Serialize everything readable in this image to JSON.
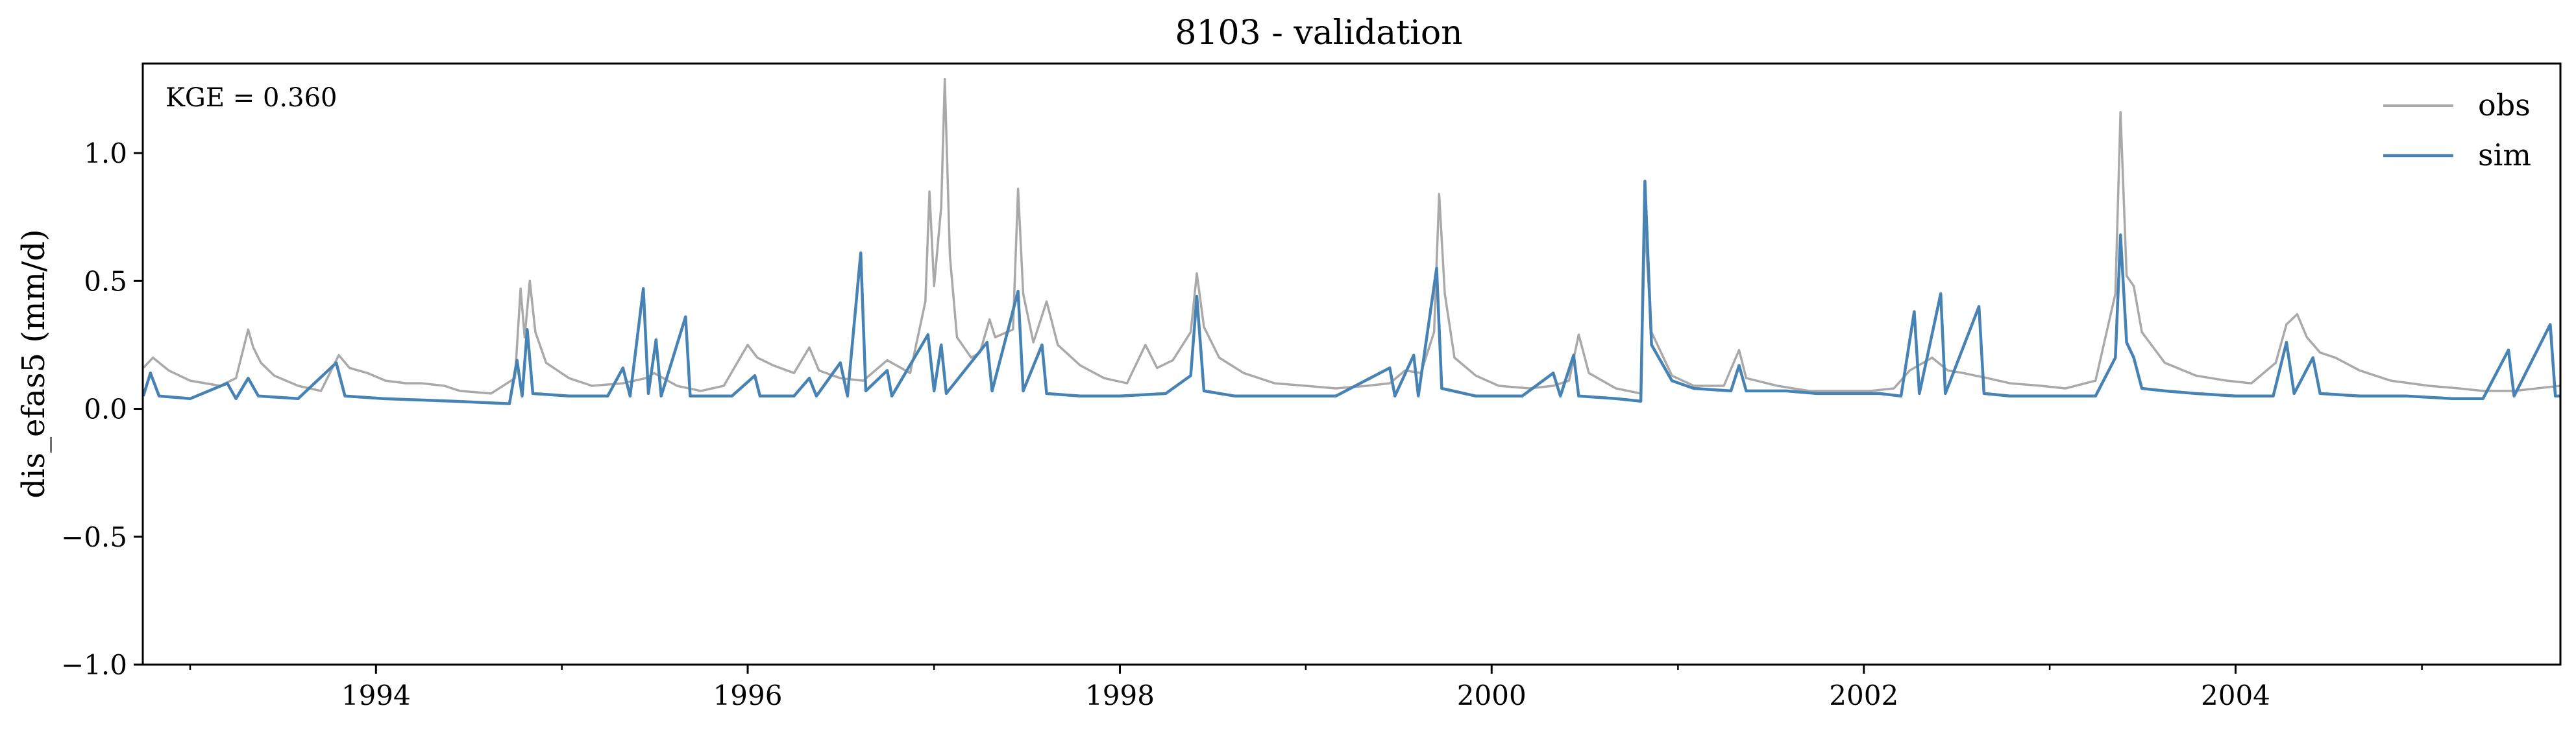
{
  "chart_data": {
    "type": "line",
    "title": "8103 - validation",
    "xlabel": "",
    "ylabel": "dis_efas5 (mm/d)",
    "annotation": "KGE = 0.360",
    "xlim": [
      "1992-09-30",
      "2005-09-30"
    ],
    "ylim": [
      -1.0,
      1.35
    ],
    "x_ticks": [
      "1994-01-01",
      "1996-01-01",
      "1998-01-01",
      "2000-01-01",
      "2002-01-01",
      "2004-01-01"
    ],
    "x_tick_labels": [
      "1994",
      "1996",
      "1998",
      "2000",
      "2002",
      "2004"
    ],
    "y_ticks": [
      -1.0,
      -0.5,
      0.0,
      0.5,
      1.0
    ],
    "y_tick_labels": [
      "−1.0",
      "−0.5",
      "0.0",
      "0.5",
      "1.0"
    ],
    "grid": false,
    "legend": "top-right",
    "series": [
      {
        "name": "obs",
        "color": "#a9a9a9",
        "points": [
          [
            "1992-10-01",
            0.16
          ],
          [
            "1992-10-20",
            0.2
          ],
          [
            "1992-11-20",
            0.15
          ],
          [
            "1993-01-01",
            0.11
          ],
          [
            "1993-03-01",
            0.09
          ],
          [
            "1993-04-01",
            0.12
          ],
          [
            "1993-04-25",
            0.31
          ],
          [
            "1993-05-05",
            0.24
          ],
          [
            "1993-05-20",
            0.18
          ],
          [
            "1993-06-15",
            0.13
          ],
          [
            "1993-08-01",
            0.09
          ],
          [
            "1993-09-15",
            0.07
          ],
          [
            "1993-10-20",
            0.21
          ],
          [
            "1993-11-10",
            0.16
          ],
          [
            "1993-12-15",
            0.14
          ],
          [
            "1994-01-20",
            0.11
          ],
          [
            "1994-03-01",
            0.1
          ],
          [
            "1994-04-01",
            0.1
          ],
          [
            "1994-05-15",
            0.09
          ],
          [
            "1994-06-15",
            0.07
          ],
          [
            "1994-08-15",
            0.06
          ],
          [
            "1994-10-01",
            0.12
          ],
          [
            "1994-10-12",
            0.47
          ],
          [
            "1994-10-20",
            0.28
          ],
          [
            "1994-10-30",
            0.5
          ],
          [
            "1994-11-10",
            0.3
          ],
          [
            "1994-12-01",
            0.18
          ],
          [
            "1995-01-15",
            0.12
          ],
          [
            "1995-03-01",
            0.09
          ],
          [
            "1995-05-01",
            0.1
          ],
          [
            "1995-06-15",
            0.12
          ],
          [
            "1995-07-01",
            0.14
          ],
          [
            "1995-08-15",
            0.09
          ],
          [
            "1995-10-01",
            0.07
          ],
          [
            "1995-11-15",
            0.09
          ],
          [
            "1996-01-01",
            0.25
          ],
          [
            "1996-01-20",
            0.2
          ],
          [
            "1996-02-20",
            0.17
          ],
          [
            "1996-04-01",
            0.14
          ],
          [
            "1996-05-01",
            0.24
          ],
          [
            "1996-05-20",
            0.15
          ],
          [
            "1996-07-01",
            0.12
          ],
          [
            "1996-08-15",
            0.11
          ],
          [
            "1996-10-01",
            0.19
          ],
          [
            "1996-11-15",
            0.14
          ],
          [
            "1996-12-15",
            0.42
          ],
          [
            "1996-12-23",
            0.85
          ],
          [
            "1997-01-01",
            0.48
          ],
          [
            "1997-01-15",
            0.79
          ],
          [
            "1997-01-22",
            1.29
          ],
          [
            "1997-02-01",
            0.6
          ],
          [
            "1997-02-15",
            0.28
          ],
          [
            "1997-03-15",
            0.2
          ],
          [
            "1997-04-01",
            0.22
          ],
          [
            "1997-04-20",
            0.35
          ],
          [
            "1997-05-01",
            0.28
          ],
          [
            "1997-06-05",
            0.31
          ],
          [
            "1997-06-15",
            0.86
          ],
          [
            "1997-06-25",
            0.45
          ],
          [
            "1997-07-15",
            0.26
          ],
          [
            "1997-08-10",
            0.42
          ],
          [
            "1997-09-01",
            0.25
          ],
          [
            "1997-10-15",
            0.17
          ],
          [
            "1997-12-01",
            0.12
          ],
          [
            "1998-01-15",
            0.1
          ],
          [
            "1998-02-20",
            0.25
          ],
          [
            "1998-03-15",
            0.16
          ],
          [
            "1998-04-15",
            0.19
          ],
          [
            "1998-05-20",
            0.3
          ],
          [
            "1998-06-01",
            0.53
          ],
          [
            "1998-06-15",
            0.32
          ],
          [
            "1998-07-15",
            0.2
          ],
          [
            "1998-09-01",
            0.14
          ],
          [
            "1998-11-01",
            0.1
          ],
          [
            "1999-01-01",
            0.09
          ],
          [
            "1999-03-01",
            0.08
          ],
          [
            "1999-05-01",
            0.09
          ],
          [
            "1999-06-15",
            0.1
          ],
          [
            "1999-07-15",
            0.15
          ],
          [
            "1999-08-15",
            0.14
          ],
          [
            "1999-09-10",
            0.3
          ],
          [
            "1999-09-20",
            0.84
          ],
          [
            "1999-10-01",
            0.45
          ],
          [
            "1999-10-20",
            0.2
          ],
          [
            "1999-12-01",
            0.13
          ],
          [
            "2000-01-15",
            0.09
          ],
          [
            "2000-03-15",
            0.08
          ],
          [
            "2000-05-01",
            0.09
          ],
          [
            "2000-06-01",
            0.11
          ],
          [
            "2000-06-20",
            0.29
          ],
          [
            "2000-07-10",
            0.14
          ],
          [
            "2000-09-01",
            0.08
          ],
          [
            "2000-10-20",
            0.06
          ],
          [
            "2000-10-28",
            0.72
          ],
          [
            "2000-11-10",
            0.3
          ],
          [
            "2000-12-20",
            0.13
          ],
          [
            "2001-02-01",
            0.09
          ],
          [
            "2001-04-01",
            0.09
          ],
          [
            "2001-05-01",
            0.23
          ],
          [
            "2001-05-15",
            0.12
          ],
          [
            "2001-07-15",
            0.09
          ],
          [
            "2001-09-15",
            0.07
          ],
          [
            "2001-11-15",
            0.07
          ],
          [
            "2002-01-15",
            0.07
          ],
          [
            "2002-03-01",
            0.08
          ],
          [
            "2002-04-01",
            0.15
          ],
          [
            "2002-05-15",
            0.2
          ],
          [
            "2002-06-15",
            0.15
          ],
          [
            "2002-07-15",
            0.14
          ],
          [
            "2002-09-01",
            0.12
          ],
          [
            "2002-10-15",
            0.1
          ],
          [
            "2002-12-15",
            0.09
          ],
          [
            "2003-02-01",
            0.08
          ],
          [
            "2003-04-01",
            0.11
          ],
          [
            "2003-05-10",
            0.45
          ],
          [
            "2003-05-20",
            1.16
          ],
          [
            "2003-06-01",
            0.52
          ],
          [
            "2003-06-15",
            0.48
          ],
          [
            "2003-07-01",
            0.3
          ],
          [
            "2003-08-15",
            0.18
          ],
          [
            "2003-10-15",
            0.13
          ],
          [
            "2003-12-15",
            0.11
          ],
          [
            "2004-02-01",
            0.1
          ],
          [
            "2004-03-20",
            0.18
          ],
          [
            "2004-04-10",
            0.33
          ],
          [
            "2004-05-01",
            0.37
          ],
          [
            "2004-05-20",
            0.28
          ],
          [
            "2004-06-15",
            0.22
          ],
          [
            "2004-07-15",
            0.2
          ],
          [
            "2004-09-01",
            0.15
          ],
          [
            "2004-11-01",
            0.11
          ],
          [
            "2005-01-15",
            0.09
          ],
          [
            "2005-03-15",
            0.08
          ],
          [
            "2005-05-01",
            0.07
          ],
          [
            "2005-07-01",
            0.07
          ],
          [
            "2005-09-30",
            0.09
          ]
        ]
      },
      {
        "name": "sim",
        "color": "#4682b4",
        "points": [
          [
            "1992-10-01",
            0.05
          ],
          [
            "1992-10-15",
            0.14
          ],
          [
            "1992-11-01",
            0.05
          ],
          [
            "1993-01-01",
            0.04
          ],
          [
            "1993-03-15",
            0.1
          ],
          [
            "1993-04-01",
            0.04
          ],
          [
            "1993-04-25",
            0.12
          ],
          [
            "1993-05-15",
            0.05
          ],
          [
            "1993-08-01",
            0.04
          ],
          [
            "1993-10-15",
            0.18
          ],
          [
            "1993-11-01",
            0.05
          ],
          [
            "1994-01-15",
            0.04
          ],
          [
            "1994-06-01",
            0.03
          ],
          [
            "1994-09-20",
            0.02
          ],
          [
            "1994-10-05",
            0.19
          ],
          [
            "1994-10-15",
            0.05
          ],
          [
            "1994-10-25",
            0.31
          ],
          [
            "1994-11-05",
            0.06
          ],
          [
            "1995-01-15",
            0.05
          ],
          [
            "1995-04-01",
            0.05
          ],
          [
            "1995-05-01",
            0.16
          ],
          [
            "1995-05-15",
            0.05
          ],
          [
            "1995-06-10",
            0.47
          ],
          [
            "1995-06-20",
            0.06
          ],
          [
            "1995-07-05",
            0.27
          ],
          [
            "1995-07-15",
            0.05
          ],
          [
            "1995-09-01",
            0.36
          ],
          [
            "1995-09-10",
            0.05
          ],
          [
            "1995-12-01",
            0.05
          ],
          [
            "1996-01-15",
            0.13
          ],
          [
            "1996-01-25",
            0.05
          ],
          [
            "1996-04-01",
            0.05
          ],
          [
            "1996-05-01",
            0.12
          ],
          [
            "1996-05-15",
            0.05
          ],
          [
            "1996-07-01",
            0.18
          ],
          [
            "1996-07-15",
            0.05
          ],
          [
            "1996-08-10",
            0.61
          ],
          [
            "1996-08-20",
            0.07
          ],
          [
            "1996-10-01",
            0.15
          ],
          [
            "1996-10-10",
            0.05
          ],
          [
            "1996-12-20",
            0.29
          ],
          [
            "1997-01-01",
            0.07
          ],
          [
            "1997-01-15",
            0.25
          ],
          [
            "1997-01-25",
            0.06
          ],
          [
            "1997-04-15",
            0.26
          ],
          [
            "1997-04-25",
            0.07
          ],
          [
            "1997-06-15",
            0.46
          ],
          [
            "1997-06-25",
            0.07
          ],
          [
            "1997-08-01",
            0.25
          ],
          [
            "1997-08-10",
            0.06
          ],
          [
            "1997-10-15",
            0.05
          ],
          [
            "1998-01-01",
            0.05
          ],
          [
            "1998-04-01",
            0.06
          ],
          [
            "1998-05-20",
            0.13
          ],
          [
            "1998-06-01",
            0.44
          ],
          [
            "1998-06-15",
            0.07
          ],
          [
            "1998-08-15",
            0.05
          ],
          [
            "1998-11-01",
            0.05
          ],
          [
            "1999-03-01",
            0.05
          ],
          [
            "1999-06-15",
            0.16
          ],
          [
            "1999-06-25",
            0.05
          ],
          [
            "1999-08-01",
            0.21
          ],
          [
            "1999-08-10",
            0.05
          ],
          [
            "1999-09-15",
            0.55
          ],
          [
            "1999-09-25",
            0.08
          ],
          [
            "1999-12-01",
            0.05
          ],
          [
            "2000-03-01",
            0.05
          ],
          [
            "2000-05-01",
            0.14
          ],
          [
            "2000-05-15",
            0.05
          ],
          [
            "2000-06-10",
            0.21
          ],
          [
            "2000-06-20",
            0.05
          ],
          [
            "2000-09-01",
            0.04
          ],
          [
            "2000-10-20",
            0.03
          ],
          [
            "2000-10-28",
            0.89
          ],
          [
            "2000-11-10",
            0.25
          ],
          [
            "2000-12-20",
            0.11
          ],
          [
            "2001-02-01",
            0.08
          ],
          [
            "2001-04-15",
            0.07
          ],
          [
            "2001-05-01",
            0.17
          ],
          [
            "2001-05-15",
            0.07
          ],
          [
            "2001-08-01",
            0.07
          ],
          [
            "2001-10-01",
            0.06
          ],
          [
            "2001-12-01",
            0.06
          ],
          [
            "2002-02-01",
            0.06
          ],
          [
            "2002-03-15",
            0.05
          ],
          [
            "2002-04-10",
            0.38
          ],
          [
            "2002-04-20",
            0.06
          ],
          [
            "2002-06-01",
            0.45
          ],
          [
            "2002-06-10",
            0.06
          ],
          [
            "2002-08-15",
            0.4
          ],
          [
            "2002-08-25",
            0.06
          ],
          [
            "2002-10-15",
            0.05
          ],
          [
            "2003-01-15",
            0.05
          ],
          [
            "2003-04-01",
            0.05
          ],
          [
            "2003-05-10",
            0.2
          ],
          [
            "2003-05-20",
            0.68
          ],
          [
            "2003-06-01",
            0.26
          ],
          [
            "2003-06-15",
            0.2
          ],
          [
            "2003-07-01",
            0.08
          ],
          [
            "2003-08-15",
            0.07
          ],
          [
            "2003-10-15",
            0.06
          ],
          [
            "2004-01-01",
            0.05
          ],
          [
            "2004-03-15",
            0.05
          ],
          [
            "2004-04-10",
            0.26
          ],
          [
            "2004-04-25",
            0.06
          ],
          [
            "2004-06-01",
            0.2
          ],
          [
            "2004-06-15",
            0.06
          ],
          [
            "2004-09-01",
            0.05
          ],
          [
            "2004-12-01",
            0.05
          ],
          [
            "2005-03-01",
            0.04
          ],
          [
            "2005-05-01",
            0.04
          ],
          [
            "2005-06-20",
            0.23
          ],
          [
            "2005-07-01",
            0.05
          ],
          [
            "2005-09-10",
            0.33
          ],
          [
            "2005-09-20",
            0.05
          ],
          [
            "2005-09-30",
            0.05
          ]
        ]
      }
    ]
  }
}
